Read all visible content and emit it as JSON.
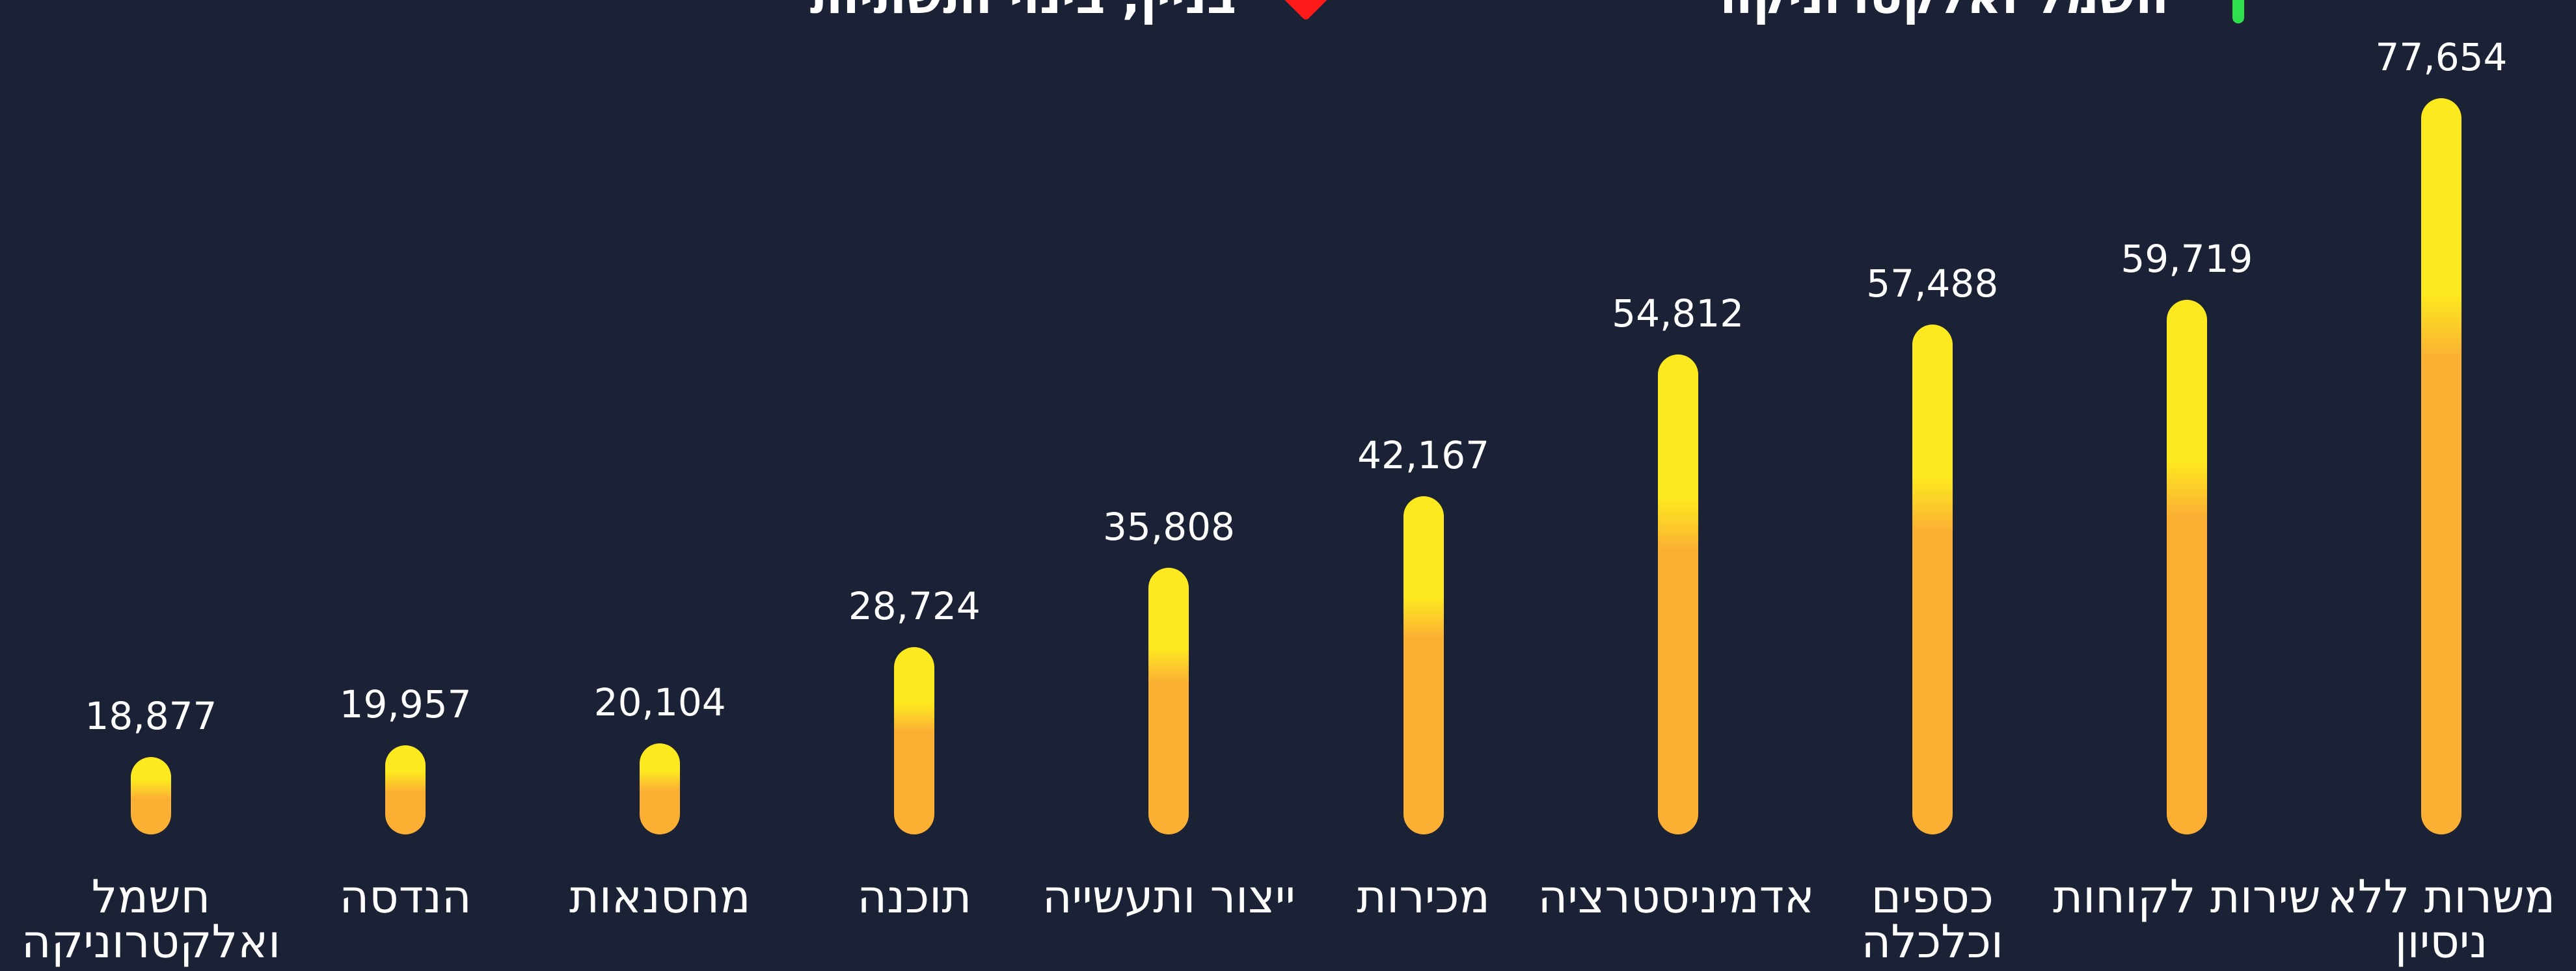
{
  "chart_data": {
    "type": "bar",
    "legend": [
      {
        "name": "חשמל ואלקטרוניקה",
        "color": "#2ee04e",
        "shape": "bar"
      },
      {
        "name": "בניין, בינוי ותשתיות",
        "color": "#ff1a1a",
        "shape": "diamond"
      }
    ],
    "categories": [
      "משרות ללא ניסיון",
      "שירות לקוחות",
      "כספים וכלכלה",
      "אדמיניסטרציה",
      "מכירות",
      "ייצור ותעשייה",
      "תוכנה",
      "מחסנאות",
      "הנדסה",
      "חשמל ואלקטרוניקה"
    ],
    "values": [
      77654,
      59719,
      57488,
      54812,
      42167,
      35808,
      28724,
      20104,
      19957,
      18877
    ],
    "value_labels": [
      "77,654",
      "59,719",
      "57,488",
      "54,812",
      "42,167",
      "35,808",
      "28,724",
      "20,104",
      "19,957",
      "18,877"
    ],
    "gradient": [
      "#fde91f",
      "#fbb034"
    ],
    "ylim": [
      12000,
      80000
    ]
  }
}
